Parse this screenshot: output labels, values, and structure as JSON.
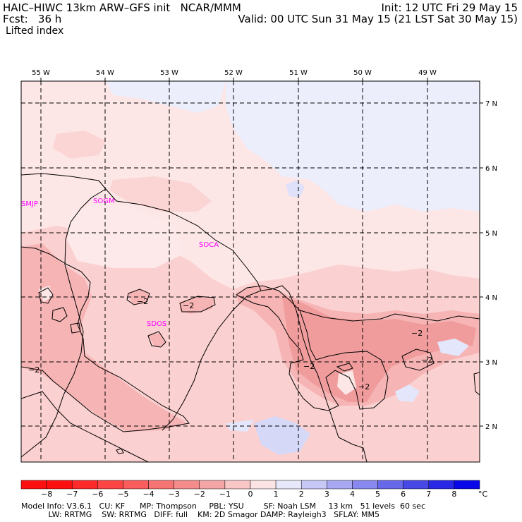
{
  "header": {
    "title": "HAIC–HIWC 13km ARW–GFS init   NCAR/MMM",
    "init": "Init: 12 UTC Fri 29 May 15",
    "fcst": "Fcst:   36 h",
    "valid": "Valid: 00 UTC Sun 31 May 15 (21 LST Sat 30 May 15)",
    "field": "Lifted index"
  },
  "map": {
    "lon_labels": [
      "55 W",
      "54 W",
      "53 W",
      "52 W",
      "51 W",
      "50 W",
      "49 W"
    ],
    "lat_labels": [
      "7 N",
      "6 N",
      "5 N",
      "4 N",
      "3 N",
      "2 N"
    ],
    "stations": [
      "SMJP",
      "SOGM",
      "SOCA",
      "SDOS"
    ],
    "contour_label": "−2",
    "colors": {
      "land_pink": "#fde6e6",
      "pink_light": "#fbd0d0",
      "pink_med": "#f6b8b8",
      "pink_dark": "#f29a9a",
      "blue_light": "#e4e6fb",
      "blue_med": "#c9cbf5"
    }
  },
  "colorbar": {
    "labels": [
      "−8",
      "−7",
      "−6",
      "−5",
      "−4",
      "−3",
      "−2",
      "−1",
      "0",
      "1",
      "2",
      "3",
      "4",
      "5",
      "6",
      "7",
      "8"
    ],
    "unit": "°C",
    "colors": [
      "#ff1010",
      "#ff2a2a",
      "#ff4444",
      "#fb5c5c",
      "#f77474",
      "#f48c8c",
      "#f4a6a6",
      "#f9c6c6",
      "#fde4e4",
      "#e8e8fb",
      "#c8c8f6",
      "#a8a8f2",
      "#8888ee",
      "#6868ea",
      "#4848e6",
      "#2828e6",
      "#0808e8"
    ]
  },
  "footer": {
    "line1": "Model Info: V3.6.1   CU: KF      MP: Thompson     PBL: YSU        SF: Noah LSM     13 km   51 levels  60 sec",
    "line2": "           LW: RRTMG    SW: RRTMG   DIFF: full    KM: 2D Smagor DAMP: Rayleigh3   SFLAY: MM5"
  }
}
